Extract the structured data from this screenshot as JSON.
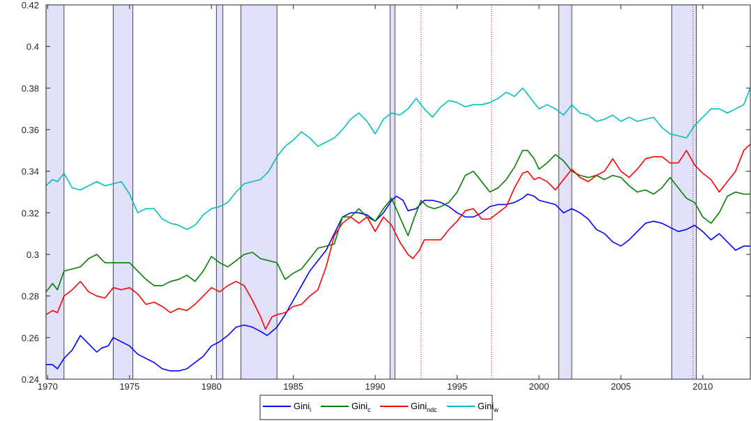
{
  "chart_data": {
    "type": "line",
    "title": "",
    "xlabel": "",
    "ylabel": "",
    "xlim": [
      1969.9,
      2012.9
    ],
    "ylim": [
      0.24,
      0.42
    ],
    "x_ticks": [
      1970,
      1975,
      1980,
      1985,
      1990,
      1995,
      2000,
      2005,
      2010
    ],
    "y_ticks": [
      0.24,
      0.26,
      0.28,
      0.3,
      0.32,
      0.34,
      0.36,
      0.38,
      0.4,
      0.42
    ],
    "x_tick_labels": [
      "1970",
      "1975",
      "1980",
      "1985",
      "1990",
      "1995",
      "2000",
      "2005",
      "2010"
    ],
    "y_tick_labels": [
      "0.24",
      "0.26",
      "0.28",
      "0.3",
      "0.32",
      "0.34",
      "0.36",
      "0.38",
      "0.4",
      "0.42"
    ],
    "grid": false,
    "legend_position": "bottom-center",
    "shaded_periods": [
      [
        1969.9,
        1971.0
      ],
      [
        1974.0,
        1975.2
      ],
      [
        1980.3,
        1980.7
      ],
      [
        1981.8,
        1984.0
      ],
      [
        1990.9,
        1991.2
      ],
      [
        2001.2,
        2002.0
      ],
      [
        2008.1,
        2009.6
      ]
    ],
    "vertical_markers": [
      1992.8,
      1997.1,
      2009.4
    ],
    "series": [
      {
        "name": "Gini_i",
        "label_main": "Gini",
        "label_sub": "i",
        "color": "#0000ff",
        "x": [
          1969.9,
          1970.3,
          1970.6,
          1971.0,
          1971.5,
          1972.0,
          1972.5,
          1973.0,
          1973.3,
          1973.7,
          1974.0,
          1974.5,
          1975.0,
          1975.5,
          1976.0,
          1976.5,
          1977.0,
          1977.5,
          1978.0,
          1978.5,
          1979.0,
          1979.5,
          1980.0,
          1980.5,
          1981.0,
          1981.5,
          1982.0,
          1982.5,
          1983.0,
          1983.4,
          1984.0,
          1984.5,
          1985.0,
          1985.5,
          1986.0,
          1986.5,
          1987.0,
          1987.5,
          1988.0,
          1988.5,
          1989.0,
          1989.5,
          1990.0,
          1990.5,
          1991.0,
          1991.3,
          1991.7,
          1992.0,
          1992.5,
          1993.0,
          1993.5,
          1994.0,
          1994.5,
          1995.0,
          1995.5,
          1996.0,
          1996.5,
          1997.0,
          1997.5,
          1998.0,
          1998.5,
          1999.0,
          1999.3,
          1999.7,
          2000.0,
          2000.5,
          2001.0,
          2001.5,
          2002.0,
          2002.5,
          2003.0,
          2003.5,
          2004.0,
          2004.5,
          2005.0,
          2005.5,
          2006.0,
          2006.5,
          2007.0,
          2007.5,
          2008.0,
          2008.5,
          2009.0,
          2009.5,
          2010.0,
          2010.5,
          2011.0,
          2011.5,
          2012.0,
          2012.5,
          2012.9
        ],
        "y": [
          0.247,
          0.247,
          0.245,
          0.25,
          0.254,
          0.261,
          0.257,
          0.253,
          0.255,
          0.256,
          0.26,
          0.258,
          0.256,
          0.252,
          0.25,
          0.248,
          0.245,
          0.244,
          0.244,
          0.245,
          0.248,
          0.251,
          0.256,
          0.258,
          0.261,
          0.265,
          0.266,
          0.265,
          0.263,
          0.261,
          0.265,
          0.271,
          0.278,
          0.285,
          0.292,
          0.297,
          0.302,
          0.31,
          0.318,
          0.32,
          0.32,
          0.319,
          0.316,
          0.32,
          0.326,
          0.328,
          0.326,
          0.321,
          0.322,
          0.326,
          0.326,
          0.325,
          0.323,
          0.32,
          0.318,
          0.318,
          0.32,
          0.323,
          0.324,
          0.324,
          0.325,
          0.327,
          0.329,
          0.328,
          0.326,
          0.325,
          0.324,
          0.32,
          0.322,
          0.32,
          0.317,
          0.312,
          0.31,
          0.306,
          0.304,
          0.307,
          0.311,
          0.315,
          0.316,
          0.315,
          0.313,
          0.311,
          0.312,
          0.314,
          0.311,
          0.307,
          0.31,
          0.306,
          0.302,
          0.304,
          0.304
        ]
      },
      {
        "name": "Gini_c",
        "label_main": "Gini",
        "label_sub": "c",
        "color": "#007f00",
        "x": [
          1969.9,
          1970.3,
          1970.6,
          1971.0,
          1971.5,
          1972.0,
          1972.5,
          1973.0,
          1973.5,
          1974.0,
          1974.5,
          1975.0,
          1975.5,
          1976.0,
          1976.5,
          1977.0,
          1977.5,
          1978.0,
          1978.5,
          1979.0,
          1979.5,
          1980.0,
          1980.5,
          1981.0,
          1981.5,
          1982.0,
          1982.5,
          1983.0,
          1983.5,
          1984.0,
          1984.5,
          1985.0,
          1985.5,
          1986.0,
          1986.5,
          1987.0,
          1987.5,
          1988.0,
          1988.5,
          1989.0,
          1989.5,
          1990.0,
          1990.5,
          1991.0,
          1991.5,
          1992.0,
          1992.4,
          1992.8,
          1993.2,
          1993.6,
          1994.0,
          1994.5,
          1995.0,
          1995.5,
          1996.0,
          1996.5,
          1997.0,
          1997.5,
          1998.0,
          1998.5,
          1999.0,
          1999.3,
          1999.7,
          2000.0,
          2000.5,
          2001.0,
          2001.5,
          2002.0,
          2002.5,
          2003.0,
          2003.5,
          2004.0,
          2004.5,
          2005.0,
          2005.5,
          2006.0,
          2006.5,
          2007.0,
          2007.5,
          2008.0,
          2008.5,
          2009.0,
          2009.5,
          2010.0,
          2010.5,
          2011.0,
          2011.5,
          2012.0,
          2012.5,
          2012.9
        ],
        "y": [
          0.282,
          0.286,
          0.283,
          0.292,
          0.293,
          0.294,
          0.298,
          0.3,
          0.296,
          0.296,
          0.296,
          0.296,
          0.292,
          0.288,
          0.285,
          0.285,
          0.287,
          0.288,
          0.29,
          0.287,
          0.292,
          0.299,
          0.296,
          0.294,
          0.297,
          0.3,
          0.301,
          0.298,
          0.297,
          0.296,
          0.288,
          0.291,
          0.293,
          0.298,
          0.303,
          0.304,
          0.305,
          0.318,
          0.318,
          0.322,
          0.318,
          0.316,
          0.322,
          0.327,
          0.318,
          0.309,
          0.318,
          0.326,
          0.323,
          0.322,
          0.323,
          0.325,
          0.33,
          0.338,
          0.34,
          0.335,
          0.33,
          0.332,
          0.336,
          0.342,
          0.35,
          0.35,
          0.346,
          0.341,
          0.344,
          0.348,
          0.345,
          0.34,
          0.338,
          0.337,
          0.338,
          0.336,
          0.338,
          0.337,
          0.333,
          0.33,
          0.331,
          0.329,
          0.332,
          0.337,
          0.332,
          0.327,
          0.325,
          0.318,
          0.315,
          0.32,
          0.328,
          0.33,
          0.329,
          0.329
        ]
      },
      {
        "name": "Gini_ndc",
        "label_main": "Gini",
        "label_sub": "ndc",
        "color": "#ff0000",
        "x": [
          1969.9,
          1970.3,
          1970.6,
          1971.0,
          1971.5,
          1972.0,
          1972.5,
          1973.0,
          1973.5,
          1974.0,
          1974.5,
          1975.0,
          1975.5,
          1976.0,
          1976.5,
          1977.0,
          1977.5,
          1978.0,
          1978.5,
          1979.0,
          1979.5,
          1980.0,
          1980.5,
          1981.0,
          1981.5,
          1982.0,
          1982.5,
          1983.0,
          1983.3,
          1983.7,
          1984.0,
          1984.5,
          1985.0,
          1985.5,
          1986.0,
          1986.5,
          1987.0,
          1987.5,
          1988.0,
          1988.5,
          1989.0,
          1989.5,
          1990.0,
          1990.5,
          1991.0,
          1991.5,
          1992.0,
          1992.3,
          1992.7,
          1993.0,
          1993.5,
          1994.0,
          1994.5,
          1995.0,
          1995.5,
          1996.0,
          1996.5,
          1997.0,
          1997.5,
          1998.0,
          1998.5,
          1999.0,
          1999.3,
          1999.7,
          2000.0,
          2000.5,
          2001.0,
          2001.5,
          2002.0,
          2002.5,
          2003.0,
          2003.5,
          2004.0,
          2004.5,
          2005.0,
          2005.5,
          2006.0,
          2006.5,
          2007.0,
          2007.5,
          2008.0,
          2008.5,
          2009.0,
          2009.5,
          2010.0,
          2010.5,
          2011.0,
          2011.5,
          2012.0,
          2012.5,
          2012.9
        ],
        "y": [
          0.271,
          0.273,
          0.272,
          0.28,
          0.283,
          0.287,
          0.282,
          0.28,
          0.279,
          0.284,
          0.283,
          0.284,
          0.281,
          0.276,
          0.277,
          0.275,
          0.272,
          0.274,
          0.273,
          0.276,
          0.28,
          0.284,
          0.282,
          0.285,
          0.287,
          0.285,
          0.278,
          0.27,
          0.264,
          0.27,
          0.271,
          0.272,
          0.275,
          0.276,
          0.28,
          0.283,
          0.294,
          0.309,
          0.315,
          0.318,
          0.315,
          0.318,
          0.311,
          0.318,
          0.314,
          0.306,
          0.3,
          0.298,
          0.302,
          0.307,
          0.307,
          0.307,
          0.312,
          0.316,
          0.321,
          0.322,
          0.317,
          0.317,
          0.32,
          0.323,
          0.332,
          0.339,
          0.34,
          0.336,
          0.337,
          0.335,
          0.331,
          0.336,
          0.341,
          0.337,
          0.335,
          0.338,
          0.34,
          0.346,
          0.34,
          0.337,
          0.341,
          0.346,
          0.347,
          0.347,
          0.344,
          0.344,
          0.35,
          0.343,
          0.339,
          0.336,
          0.33,
          0.335,
          0.34,
          0.35,
          0.353
        ]
      },
      {
        "name": "Gini_w",
        "label_main": "Gini",
        "label_sub": "w",
        "color": "#00bfbf",
        "x": [
          1969.9,
          1970.3,
          1970.6,
          1971.0,
          1971.5,
          1972.0,
          1972.5,
          1973.0,
          1973.5,
          1974.0,
          1974.5,
          1975.0,
          1975.5,
          1976.0,
          1976.5,
          1977.0,
          1977.5,
          1978.0,
          1978.5,
          1979.0,
          1979.5,
          1980.0,
          1980.5,
          1981.0,
          1981.5,
          1982.0,
          1982.5,
          1983.0,
          1983.5,
          1984.0,
          1984.5,
          1985.0,
          1985.5,
          1986.0,
          1986.5,
          1987.0,
          1987.5,
          1988.0,
          1988.5,
          1989.0,
          1989.5,
          1990.0,
          1990.5,
          1991.0,
          1991.5,
          1992.0,
          1992.5,
          1993.0,
          1993.5,
          1994.0,
          1994.5,
          1995.0,
          1995.5,
          1996.0,
          1996.5,
          1997.0,
          1997.5,
          1998.0,
          1998.5,
          1999.0,
          1999.3,
          1999.7,
          2000.0,
          2000.5,
          2001.0,
          2001.5,
          2002.0,
          2002.5,
          2003.0,
          2003.5,
          2004.0,
          2004.5,
          2005.0,
          2005.5,
          2006.0,
          2006.5,
          2007.0,
          2007.5,
          2008.0,
          2008.5,
          2009.0,
          2009.5,
          2010.0,
          2010.5,
          2011.0,
          2011.5,
          2012.0,
          2012.5,
          2012.9
        ],
        "y": [
          0.333,
          0.336,
          0.335,
          0.339,
          0.332,
          0.331,
          0.333,
          0.335,
          0.333,
          0.334,
          0.335,
          0.329,
          0.32,
          0.322,
          0.322,
          0.317,
          0.315,
          0.314,
          0.312,
          0.314,
          0.319,
          0.322,
          0.323,
          0.325,
          0.33,
          0.334,
          0.335,
          0.336,
          0.34,
          0.347,
          0.352,
          0.355,
          0.359,
          0.356,
          0.352,
          0.354,
          0.356,
          0.36,
          0.365,
          0.368,
          0.364,
          0.358,
          0.365,
          0.368,
          0.367,
          0.37,
          0.375,
          0.37,
          0.366,
          0.371,
          0.374,
          0.373,
          0.371,
          0.372,
          0.372,
          0.373,
          0.375,
          0.378,
          0.376,
          0.38,
          0.377,
          0.373,
          0.37,
          0.372,
          0.37,
          0.367,
          0.372,
          0.368,
          0.367,
          0.364,
          0.365,
          0.367,
          0.364,
          0.366,
          0.364,
          0.365,
          0.366,
          0.361,
          0.358,
          0.357,
          0.356,
          0.362,
          0.366,
          0.37,
          0.37,
          0.368,
          0.37,
          0.372,
          0.38
        ]
      }
    ]
  }
}
